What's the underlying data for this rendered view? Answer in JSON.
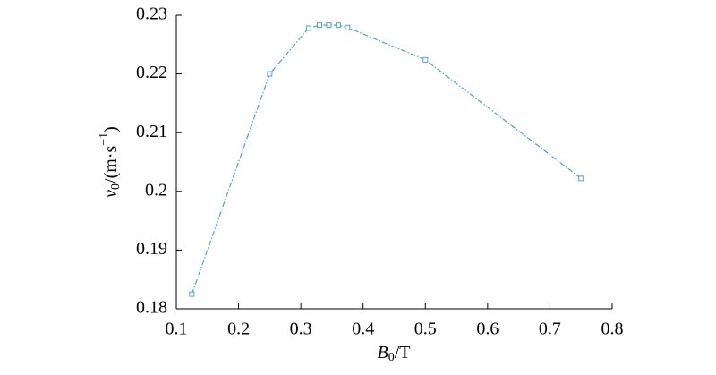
{
  "chart_data": {
    "type": "line",
    "xlabel": [
      "B",
      "0",
      "/T"
    ],
    "ylabel": [
      "v",
      "0",
      "/(m·s",
      "−1",
      ")"
    ],
    "x": [
      0.125,
      0.25,
      0.3125,
      0.33,
      0.345,
      0.36,
      0.375,
      0.5,
      0.75
    ],
    "series": [
      {
        "color": "#4f9fd4",
        "values": [
          0.1825,
          0.22,
          0.2278,
          0.2283,
          0.2283,
          0.2283,
          0.2279,
          0.2224,
          0.2022
        ]
      }
    ],
    "xlim": [
      0.1,
      0.8
    ],
    "xticks": [
      0.1,
      0.2,
      0.3,
      0.4,
      0.5,
      0.6,
      0.7,
      0.8
    ],
    "ylim": [
      0.18,
      0.23
    ],
    "yticks": [
      0.18,
      0.19,
      0.2,
      0.21,
      0.22,
      0.23
    ]
  }
}
